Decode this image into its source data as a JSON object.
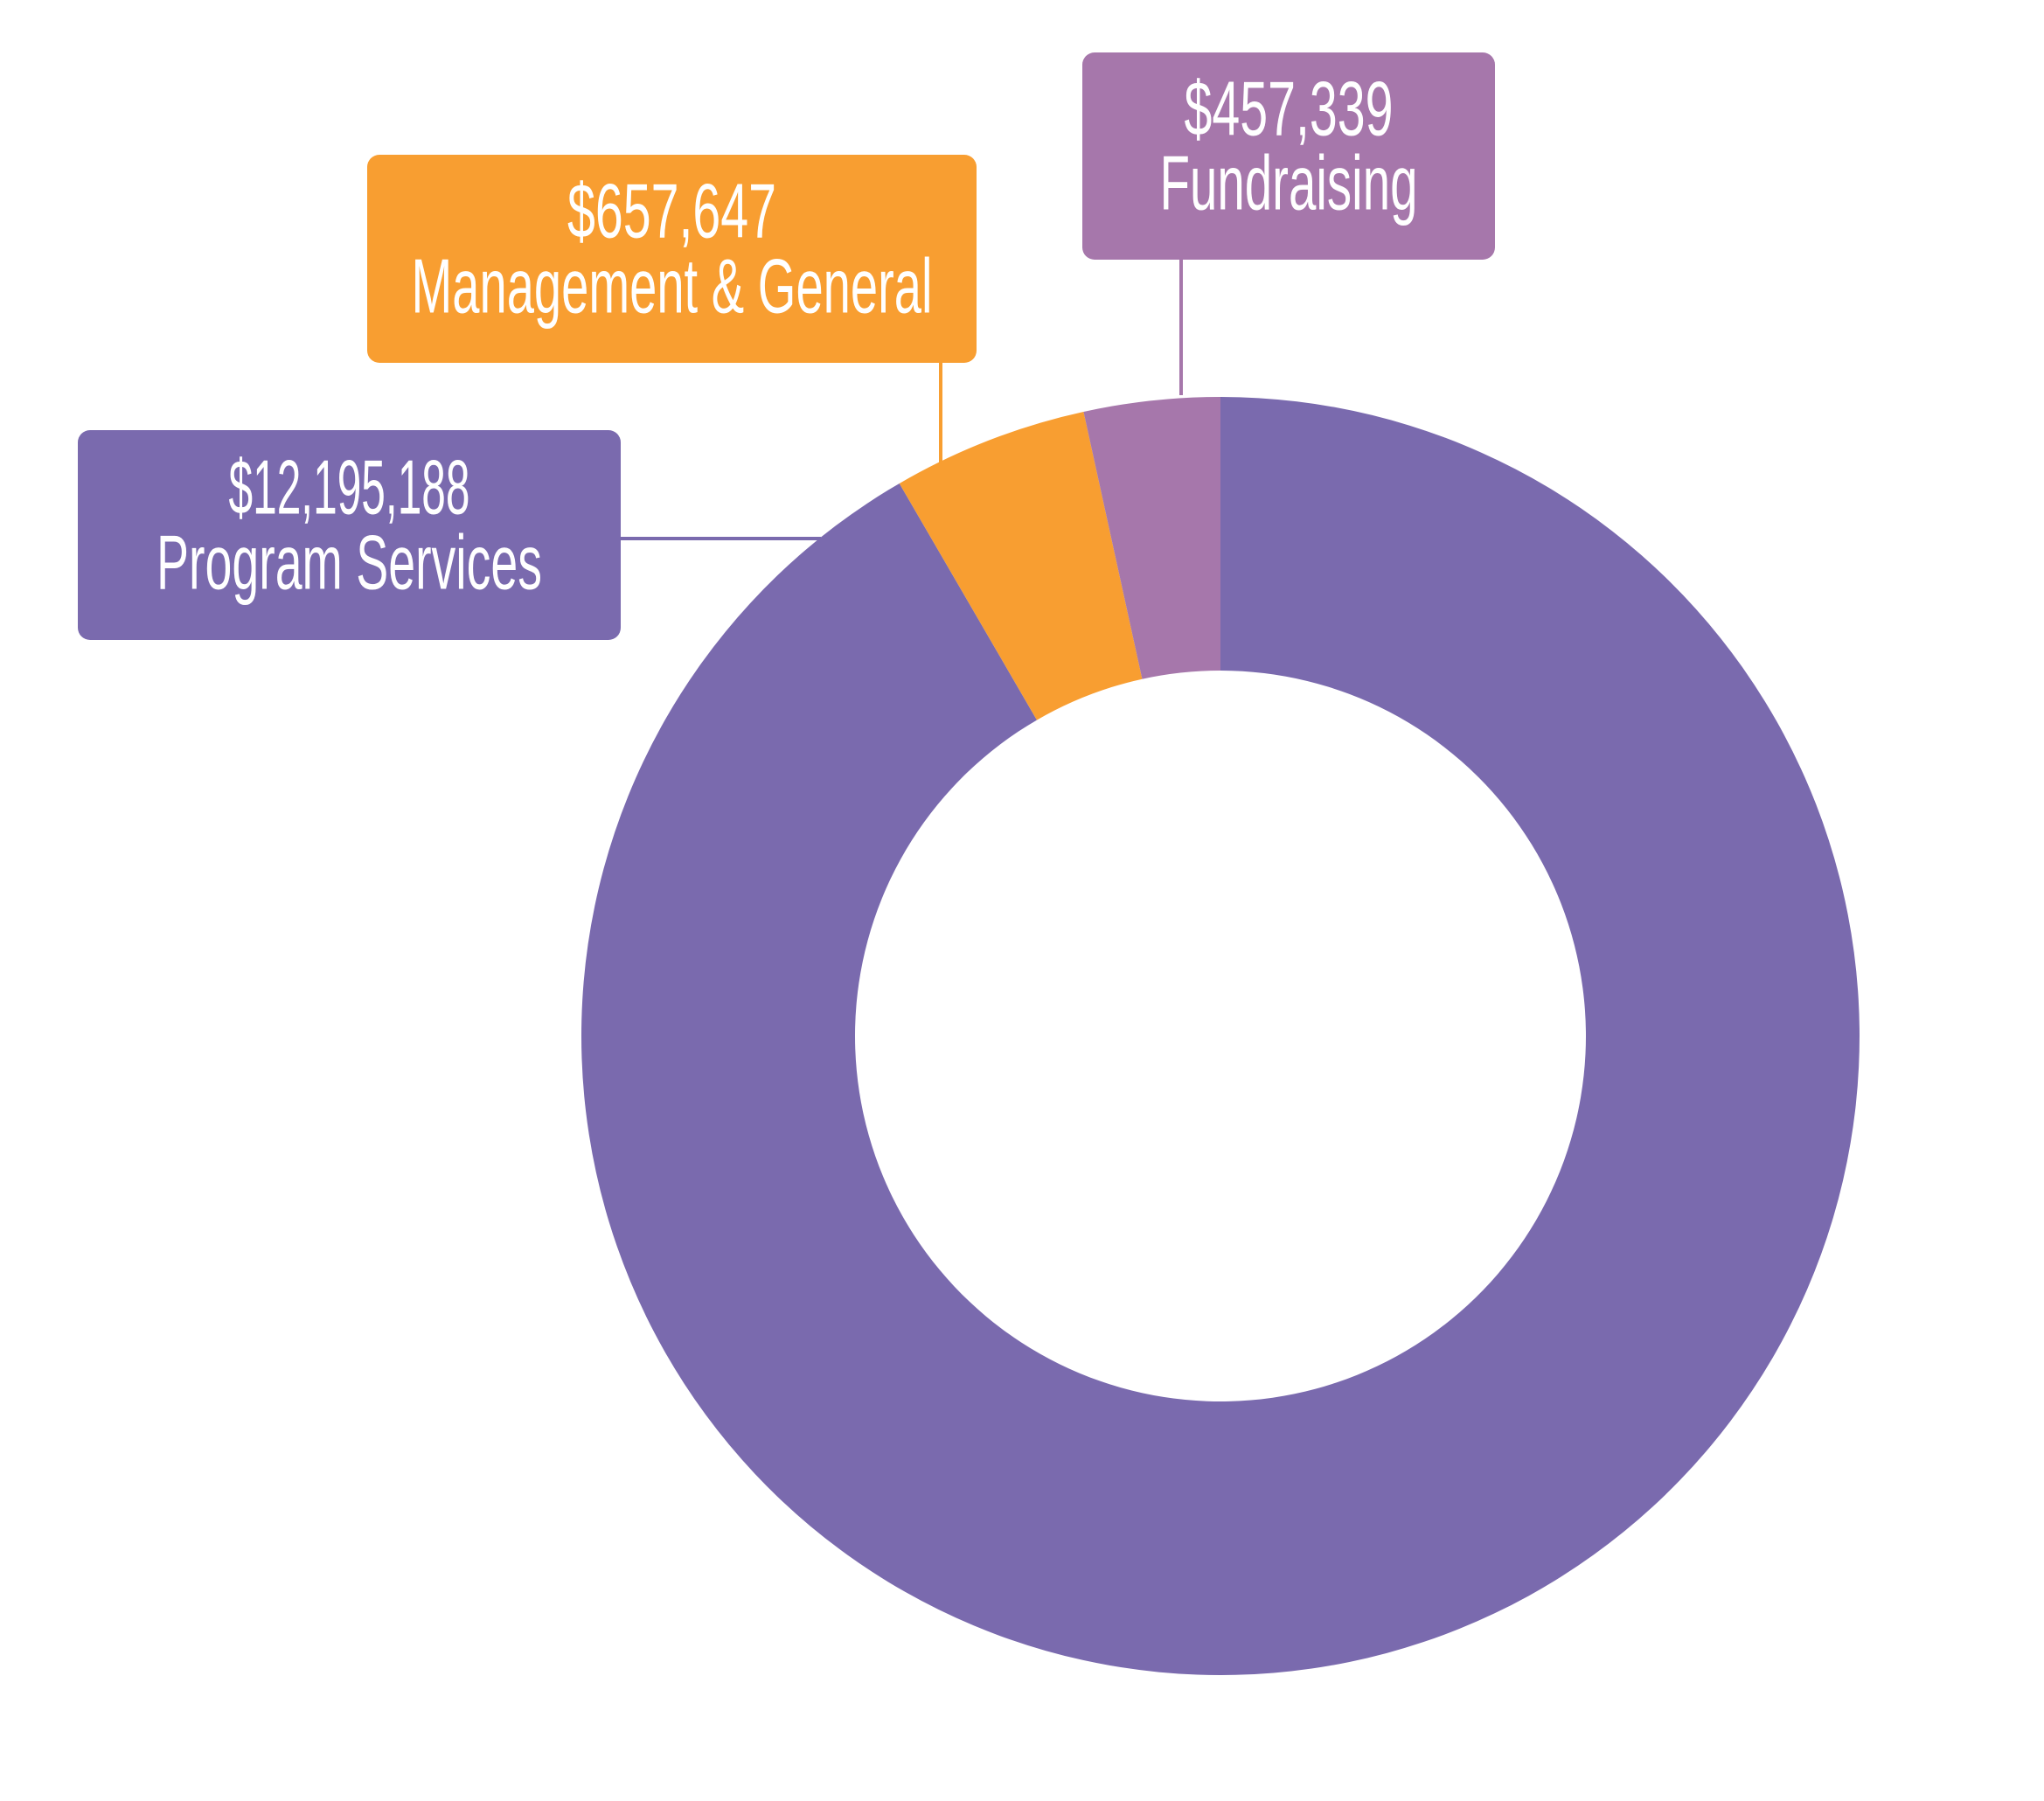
{
  "chart_data": {
    "type": "donut",
    "categories": [
      "Program Services",
      "Management & General",
      "Fundraising"
    ],
    "values": [
      12195188,
      657647,
      457339
    ],
    "value_labels": [
      "$12,195,188",
      "$657,647",
      "$457,339"
    ],
    "colors": [
      "#7a6aae",
      "#f89e31",
      "#a677ab"
    ]
  }
}
